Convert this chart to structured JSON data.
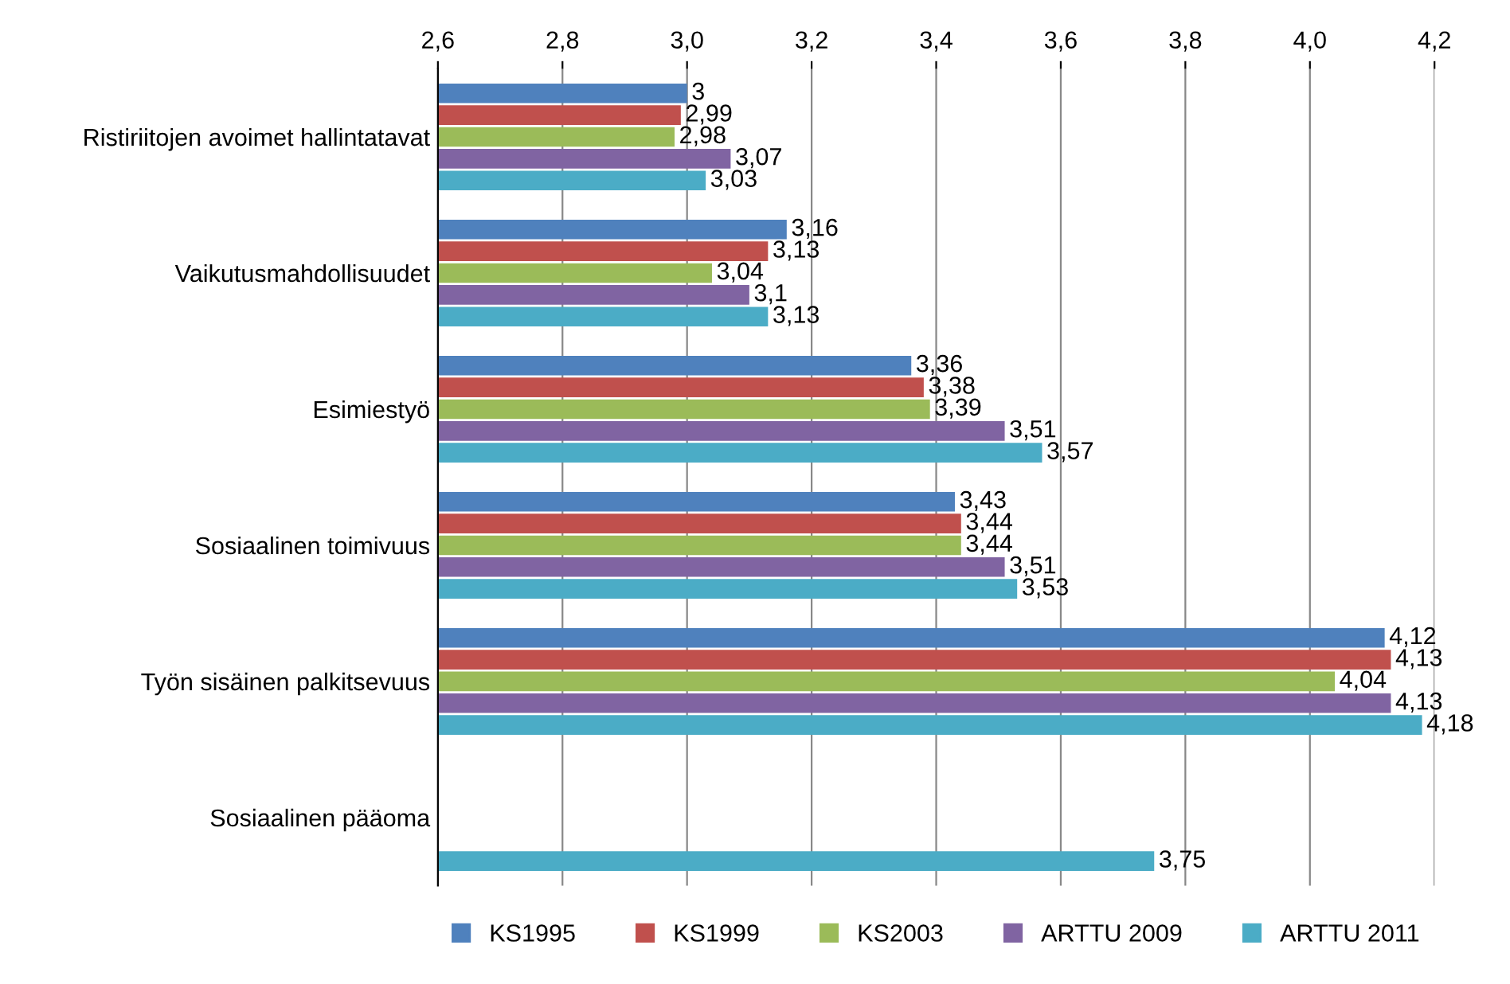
{
  "chart_data": {
    "type": "bar",
    "orientation": "horizontal",
    "categories": [
      "Ristiriitojen avoimet hallintatavat",
      "Vaikutusmahdollisuudet",
      "Esimiestyö",
      "Sosiaalinen toimivuus",
      "Työn sisäinen palkitsevuus",
      "Sosiaalinen pääoma"
    ],
    "series": [
      {
        "name": "KS1995",
        "color": "#4f81bd",
        "values": [
          3.0,
          3.16,
          3.36,
          3.43,
          4.12,
          null
        ],
        "value_labels": [
          "3",
          "3,16",
          "3,36",
          "3,43",
          "4,12",
          null
        ]
      },
      {
        "name": "KS1999",
        "color": "#c0504d",
        "values": [
          2.99,
          3.13,
          3.38,
          3.44,
          4.13,
          null
        ],
        "value_labels": [
          "2,99",
          "3,13",
          "3,38",
          "3,44",
          "4,13",
          null
        ]
      },
      {
        "name": "KS2003",
        "color": "#9bbb59",
        "values": [
          2.98,
          3.04,
          3.39,
          3.44,
          4.04,
          null
        ],
        "value_labels": [
          "2,98",
          "3,04",
          "3,39",
          "3,44",
          "4,04",
          null
        ]
      },
      {
        "name": "ARTTU 2009",
        "color": "#8064a2",
        "values": [
          3.07,
          3.1,
          3.51,
          3.51,
          4.13,
          null
        ],
        "value_labels": [
          "3,07",
          "3,1",
          "3,51",
          "3,51",
          "4,13",
          null
        ]
      },
      {
        "name": "ARTTU 2011",
        "color": "#4bacc6",
        "values": [
          3.03,
          3.13,
          3.57,
          3.53,
          4.18,
          3.75
        ],
        "value_labels": [
          "3,03",
          "3,13",
          "3,57",
          "3,53",
          "4,18",
          "3,75"
        ]
      }
    ],
    "xlim": [
      2.6,
      4.2
    ],
    "xticks": [
      {
        "value": 2.6,
        "label": "2,6"
      },
      {
        "value": 2.8,
        "label": "2,8"
      },
      {
        "value": 3.0,
        "label": "3,0"
      },
      {
        "value": 3.2,
        "label": "3,2"
      },
      {
        "value": 3.4,
        "label": "3,4"
      },
      {
        "value": 3.6,
        "label": "3,6"
      },
      {
        "value": 3.8,
        "label": "3,8"
      },
      {
        "value": 4.0,
        "label": "4,0"
      },
      {
        "value": 4.2,
        "label": "4,2"
      }
    ],
    "grid": "x",
    "legend": "bottom"
  }
}
